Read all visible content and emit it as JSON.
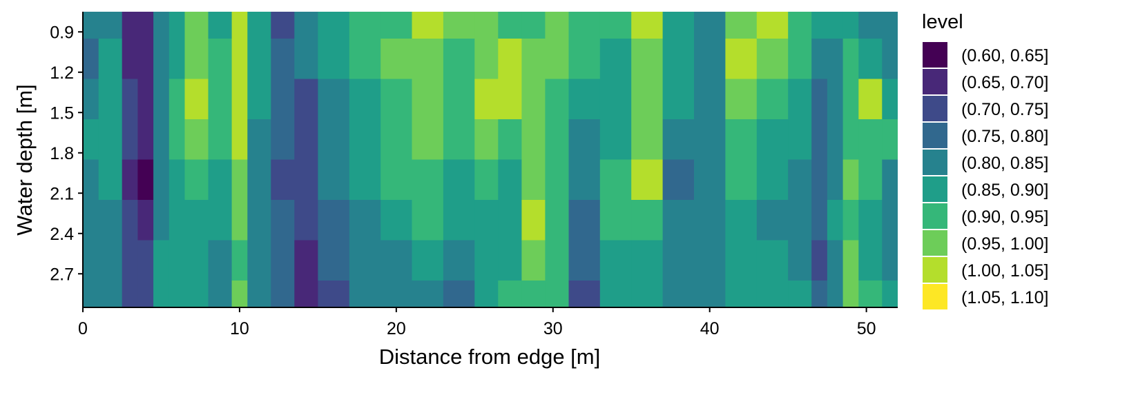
{
  "chart_data": {
    "type": "heatmap",
    "subtype": "filled-contour",
    "title": "",
    "xlabel": "Distance from edge [m]",
    "ylabel": "Water depth [m]",
    "xlim": [
      0,
      52
    ],
    "ylim": [
      0.75,
      2.95
    ],
    "y_reversed": true,
    "xticks": [
      0,
      10,
      20,
      30,
      40,
      50
    ],
    "yticks": [
      0.9,
      1.2,
      1.5,
      1.8,
      2.1,
      2.4,
      2.7
    ],
    "ytick_labels": [
      "0.9",
      "1.2",
      "1.5",
      "1.8",
      "2.1",
      "2.4",
      "2.7"
    ],
    "grid": false,
    "legend": {
      "title": "level",
      "placement": "right",
      "entries": [
        {
          "label": "(0.60, 0.65]",
          "color": "#440154"
        },
        {
          "label": "(0.65, 0.70]",
          "color": "#482878"
        },
        {
          "label": "(0.70, 0.75]",
          "color": "#3E4A89"
        },
        {
          "label": "(0.75, 0.80]",
          "color": "#31688E"
        },
        {
          "label": "(0.80, 0.85]",
          "color": "#26828E"
        },
        {
          "label": "(0.85, 0.90]",
          "color": "#1F9E89"
        },
        {
          "label": "(0.90, 0.95]",
          "color": "#35B779"
        },
        {
          "label": "(0.95, 1.00]",
          "color": "#6DCD59"
        },
        {
          "label": "(1.00, 1.05]",
          "color": "#B4DE2C"
        },
        {
          "label": "(1.05, 1.10]",
          "color": "#FDE725"
        }
      ]
    },
    "grid_x": [
      0,
      2,
      3,
      4,
      5,
      6,
      7,
      9,
      10,
      11,
      13,
      14,
      16,
      18,
      20,
      22,
      24,
      26,
      27,
      29,
      30,
      32,
      34,
      36,
      38,
      40,
      42,
      44,
      46,
      47,
      48,
      49,
      50,
      52
    ],
    "grid_y": [
      0.8,
      1.1,
      1.4,
      1.7,
      2.0,
      2.3,
      2.6,
      2.9
    ],
    "level_matrix": [
      [
        4,
        4,
        1,
        1,
        4,
        5,
        7,
        5,
        8,
        5,
        2,
        4,
        5,
        6,
        6,
        8,
        7,
        7,
        6,
        6,
        7,
        6,
        6,
        8,
        5,
        4,
        7,
        8,
        6,
        5,
        5,
        5,
        4,
        4
      ],
      [
        3,
        5,
        1,
        1,
        4,
        5,
        7,
        6,
        8,
        5,
        3,
        4,
        5,
        6,
        7,
        7,
        6,
        7,
        8,
        7,
        7,
        6,
        5,
        7,
        5,
        4,
        8,
        7,
        6,
        4,
        4,
        6,
        5,
        4
      ],
      [
        4,
        5,
        2,
        1,
        4,
        6,
        8,
        6,
        8,
        5,
        3,
        2,
        4,
        5,
        6,
        7,
        6,
        8,
        8,
        7,
        6,
        5,
        5,
        7,
        5,
        4,
        7,
        6,
        5,
        3,
        4,
        6,
        8,
        5
      ],
      [
        5,
        5,
        2,
        1,
        4,
        6,
        7,
        6,
        8,
        4,
        3,
        2,
        4,
        5,
        6,
        7,
        6,
        7,
        6,
        7,
        6,
        4,
        5,
        7,
        4,
        4,
        6,
        5,
        5,
        3,
        4,
        6,
        6,
        6
      ],
      [
        4,
        5,
        1,
        0,
        4,
        5,
        6,
        5,
        7,
        4,
        2,
        2,
        4,
        5,
        6,
        6,
        5,
        6,
        5,
        7,
        6,
        4,
        6,
        8,
        3,
        4,
        6,
        5,
        4,
        3,
        4,
        7,
        6,
        4
      ],
      [
        4,
        4,
        2,
        1,
        4,
        5,
        5,
        5,
        7,
        4,
        3,
        2,
        3,
        4,
        5,
        6,
        5,
        5,
        5,
        8,
        6,
        3,
        6,
        6,
        4,
        4,
        5,
        4,
        4,
        3,
        5,
        6,
        5,
        4
      ],
      [
        4,
        4,
        2,
        2,
        5,
        5,
        5,
        4,
        6,
        4,
        3,
        1,
        3,
        4,
        4,
        5,
        4,
        5,
        5,
        7,
        6,
        3,
        5,
        5,
        4,
        4,
        5,
        5,
        4,
        2,
        4,
        7,
        5,
        4
      ],
      [
        4,
        4,
        2,
        2,
        5,
        5,
        5,
        4,
        7,
        4,
        3,
        1,
        2,
        4,
        4,
        4,
        3,
        5,
        6,
        6,
        6,
        2,
        5,
        5,
        4,
        4,
        5,
        5,
        5,
        3,
        4,
        7,
        6,
        5
      ]
    ]
  }
}
